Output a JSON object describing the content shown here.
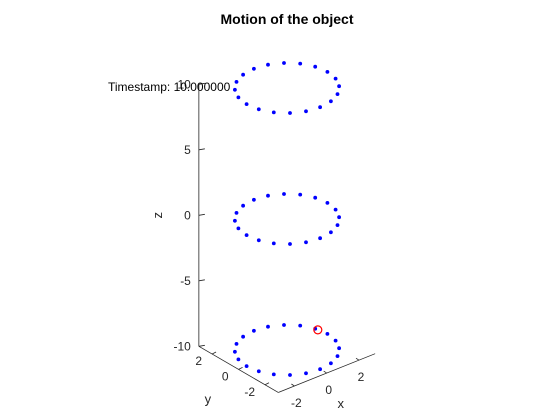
{
  "chart_data": {
    "type": "scatter",
    "title": "Motion of the object",
    "xlabel": "x",
    "ylabel": "y",
    "zlabel": "z",
    "xlim": [
      -3,
      3
    ],
    "ylim": [
      -3,
      3
    ],
    "zlim": [
      -10,
      10
    ],
    "x_ticks": [
      "-2",
      "0",
      "2"
    ],
    "y_ticks": [
      "-2",
      "0",
      "2"
    ],
    "z_ticks": [
      "-10",
      "-5",
      "0",
      "5",
      "10"
    ],
    "grid": false,
    "annotation": "Timestamp: 10.000000",
    "series": [
      {
        "marker": "dot",
        "color": "#0000ff",
        "rings": [
          {
            "z": -10,
            "radius": 2.5,
            "points": 20
          },
          {
            "z": 0,
            "radius": 2.5,
            "points": 20
          },
          {
            "z": 10,
            "radius": 2.5,
            "points": 20
          }
        ]
      },
      {
        "marker": "circle",
        "color": "#ff0000",
        "points": [
          {
            "x": 2.4,
            "y": 0.6,
            "z": -10
          }
        ]
      }
    ]
  }
}
